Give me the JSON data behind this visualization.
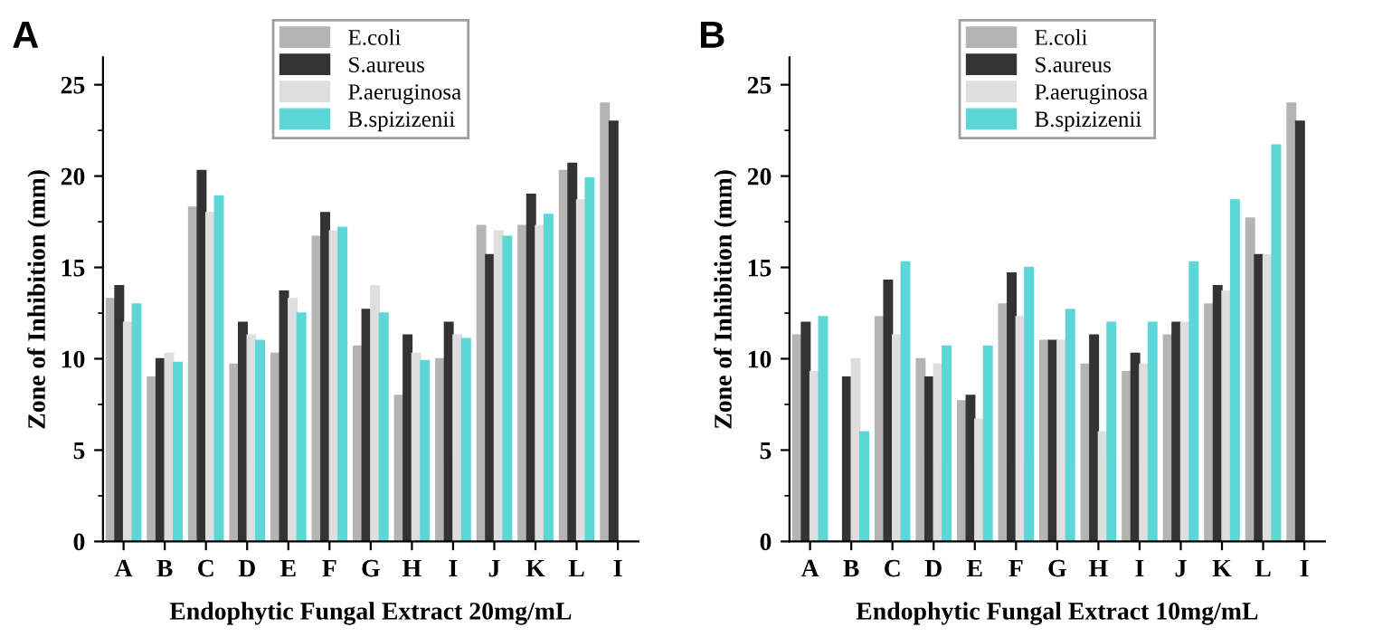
{
  "chart_data": [
    {
      "type": "bar",
      "title": "A",
      "xlabel": "Endophytic Fungal Extract 20mg/mL",
      "ylabel": "Zone of Inhibition (mm)",
      "categories": [
        "A",
        "B",
        "C",
        "D",
        "E",
        "F",
        "G",
        "H",
        "I",
        "J",
        "K",
        "L",
        "I"
      ],
      "ylim": [
        0,
        26.5
      ],
      "yticks": [
        0,
        5,
        10,
        15,
        20,
        25
      ],
      "legend": "top",
      "grid": false,
      "series": [
        {
          "name": "E.coli",
          "color": "#b4b4b4",
          "values": [
            13.3,
            9,
            18.3,
            9.7,
            10.3,
            16.7,
            10.7,
            8,
            10,
            17.3,
            17.3,
            20.3,
            24
          ]
        },
        {
          "name": "S.aureus",
          "color": "#333333",
          "values": [
            14,
            10,
            20.3,
            12,
            13.7,
            18,
            12.7,
            11.3,
            12,
            15.7,
            19,
            20.7,
            23
          ]
        },
        {
          "name": "P.aeruginosa",
          "color": "#dedede",
          "values": [
            12,
            10.3,
            18,
            11.3,
            13.3,
            17,
            14,
            10.3,
            11.3,
            17,
            17.3,
            18.7,
            null
          ]
        },
        {
          "name": "B.spizizenii",
          "color": "#5cd6d6",
          "values": [
            13,
            9.8,
            18.9,
            11,
            12.5,
            17.2,
            12.5,
            9.9,
            11.1,
            16.7,
            17.9,
            19.9,
            null
          ]
        }
      ]
    },
    {
      "type": "bar",
      "title": "B",
      "xlabel": "Endophytic Fungal Extract 10mg/mL",
      "ylabel": "Zone of Inhibition (mm)",
      "categories": [
        "A",
        "B",
        "C",
        "D",
        "E",
        "F",
        "G",
        "H",
        "I",
        "J",
        "K",
        "L",
        "I"
      ],
      "ylim": [
        0,
        26.5
      ],
      "yticks": [
        0,
        5,
        10,
        15,
        20,
        25
      ],
      "legend": "top",
      "grid": false,
      "series": [
        {
          "name": "E.coli",
          "color": "#b4b4b4",
          "values": [
            11.3,
            0,
            12.3,
            10,
            7.7,
            13,
            11,
            9.7,
            9.3,
            11.3,
            13,
            17.7,
            24
          ]
        },
        {
          "name": "S.aureus",
          "color": "#333333",
          "values": [
            12,
            9,
            14.3,
            9,
            8,
            14.7,
            11,
            11.3,
            10.3,
            12,
            14,
            15.7,
            23
          ]
        },
        {
          "name": "P.aeruginosa",
          "color": "#dedede",
          "values": [
            9.3,
            10,
            11.3,
            9.7,
            6.7,
            12.3,
            11,
            6,
            9.7,
            12,
            13.7,
            15.7,
            null
          ]
        },
        {
          "name": "B.spizizenii",
          "color": "#5cd6d6",
          "values": [
            12.3,
            6,
            15.3,
            10.7,
            10.7,
            15,
            12.7,
            12,
            12,
            15.3,
            18.7,
            21.7,
            null
          ]
        }
      ]
    }
  ]
}
